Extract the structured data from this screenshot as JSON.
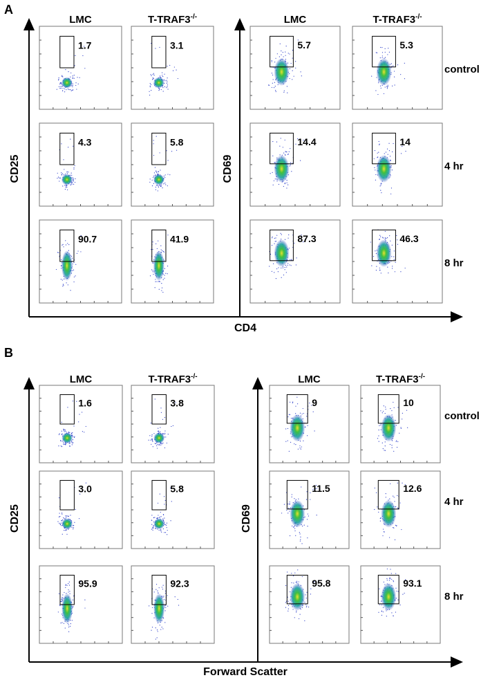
{
  "rows": [
    "control",
    "4 hr",
    "8 hr"
  ],
  "columns": [
    {
      "name": "LMC"
    },
    {
      "name": "T-TRAF3",
      "superscript": "-/-"
    }
  ],
  "panels": [
    {
      "label": "A",
      "x_axis": "CD4",
      "groups": [
        {
          "y_axis": "CD25",
          "values": [
            [
              "1.7",
              "3.1"
            ],
            [
              "4.3",
              "5.8"
            ],
            [
              "90.7",
              "41.9"
            ]
          ]
        },
        {
          "y_axis": "CD69",
          "values": [
            [
              "5.7",
              "5.3"
            ],
            [
              "14.4",
              "14"
            ],
            [
              "87.3",
              "46.3"
            ]
          ]
        }
      ]
    },
    {
      "label": "B",
      "x_axis": "Forward Scatter",
      "groups": [
        {
          "y_axis": "CD25",
          "values": [
            [
              "1.6",
              "3.8"
            ],
            [
              "3.0",
              "5.8"
            ],
            [
              "95.9",
              "92.3"
            ]
          ]
        },
        {
          "y_axis": "CD69",
          "values": [
            [
              "9",
              "10"
            ],
            [
              "11.5",
              "12.6"
            ],
            [
              "95.8",
              "93.1"
            ]
          ]
        }
      ]
    }
  ]
}
